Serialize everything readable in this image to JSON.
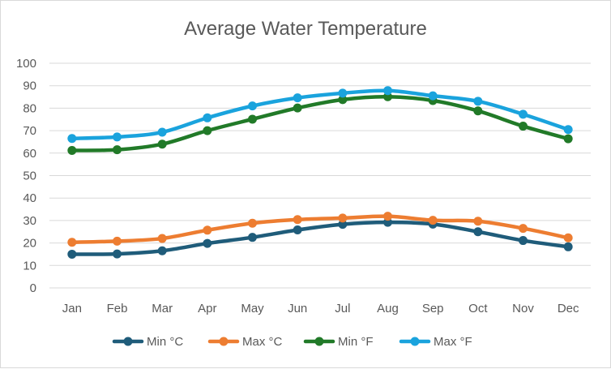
{
  "chart_data": {
    "type": "line",
    "title": "Average Water Temperature",
    "xlabel": "",
    "ylabel": "",
    "categories": [
      "Jan",
      "Feb",
      "Mar",
      "Apr",
      "May",
      "Jun",
      "Jul",
      "Aug",
      "Sep",
      "Oct",
      "Nov",
      "Dec"
    ],
    "ylim": [
      0,
      100
    ],
    "yticks": [
      0,
      10,
      20,
      30,
      40,
      50,
      60,
      70,
      80,
      90,
      100
    ],
    "grid": true,
    "legend_position": "bottom",
    "series": [
      {
        "name": "Min °C",
        "color": "#1f5c7a",
        "values": [
          15.0,
          15.1,
          16.5,
          19.8,
          22.5,
          25.8,
          28.3,
          29.2,
          28.4,
          25.0,
          21.1,
          18.3
        ]
      },
      {
        "name": "Max °C",
        "color": "#ed7d31",
        "values": [
          20.3,
          20.8,
          22.0,
          25.7,
          28.8,
          30.4,
          31.1,
          31.9,
          30.1,
          29.7,
          26.5,
          22.3
        ]
      },
      {
        "name": "Min °F",
        "color": "#217a28",
        "values": [
          61.2,
          61.5,
          64.0,
          70.0,
          75.1,
          80.1,
          83.8,
          85.1,
          83.4,
          78.8,
          72.0,
          66.4
        ]
      },
      {
        "name": "Max °F",
        "color": "#1aa3dd",
        "values": [
          66.5,
          67.2,
          69.3,
          75.7,
          81.0,
          84.6,
          86.7,
          87.8,
          85.5,
          83.1,
          77.3,
          70.5
        ]
      }
    ]
  }
}
